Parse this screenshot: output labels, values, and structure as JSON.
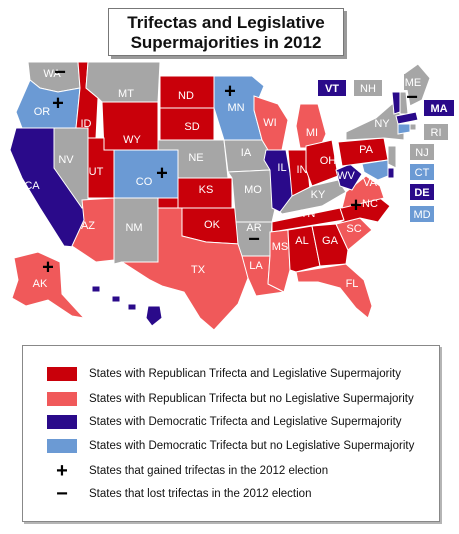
{
  "title": {
    "line1": "Trifectas and Legislative",
    "line2": "Supermajorities in 2012"
  },
  "colors": {
    "rep_super": "#c9000a",
    "rep_trifecta": "#f0595a",
    "dem_super": "#2a0a8a",
    "dem_trifecta": "#6b9ad4",
    "none": "#a6a6a6",
    "border": "#ffffff"
  },
  "states": [
    {
      "abbr": "WA",
      "cat": "none"
    },
    {
      "abbr": "OR",
      "cat": "dem_trifecta"
    },
    {
      "abbr": "CA",
      "cat": "dem_super"
    },
    {
      "abbr": "ID",
      "cat": "rep_super"
    },
    {
      "abbr": "NV",
      "cat": "none"
    },
    {
      "abbr": "MT",
      "cat": "none"
    },
    {
      "abbr": "WY",
      "cat": "rep_super"
    },
    {
      "abbr": "UT",
      "cat": "rep_super"
    },
    {
      "abbr": "AZ",
      "cat": "rep_trifecta"
    },
    {
      "abbr": "CO",
      "cat": "dem_trifecta"
    },
    {
      "abbr": "NM",
      "cat": "none"
    },
    {
      "abbr": "ND",
      "cat": "rep_super"
    },
    {
      "abbr": "SD",
      "cat": "rep_super"
    },
    {
      "abbr": "NE",
      "cat": "none"
    },
    {
      "abbr": "KS",
      "cat": "rep_super"
    },
    {
      "abbr": "OK",
      "cat": "rep_super"
    },
    {
      "abbr": "TX",
      "cat": "rep_trifecta"
    },
    {
      "abbr": "MN",
      "cat": "dem_trifecta"
    },
    {
      "abbr": "IA",
      "cat": "none"
    },
    {
      "abbr": "MO",
      "cat": "none"
    },
    {
      "abbr": "AR",
      "cat": "none"
    },
    {
      "abbr": "LA",
      "cat": "rep_trifecta"
    },
    {
      "abbr": "WI",
      "cat": "rep_trifecta"
    },
    {
      "abbr": "IL",
      "cat": "dem_super"
    },
    {
      "abbr": "MI",
      "cat": "rep_trifecta"
    },
    {
      "abbr": "IN",
      "cat": "rep_super"
    },
    {
      "abbr": "OH",
      "cat": "rep_super"
    },
    {
      "abbr": "KY",
      "cat": "none"
    },
    {
      "abbr": "TN",
      "cat": "rep_super"
    },
    {
      "abbr": "MS",
      "cat": "rep_trifecta"
    },
    {
      "abbr": "AL",
      "cat": "rep_super"
    },
    {
      "abbr": "GA",
      "cat": "rep_super"
    },
    {
      "abbr": "FL",
      "cat": "rep_trifecta"
    },
    {
      "abbr": "SC",
      "cat": "rep_trifecta"
    },
    {
      "abbr": "NC",
      "cat": "rep_super"
    },
    {
      "abbr": "VA",
      "cat": "rep_trifecta"
    },
    {
      "abbr": "WV",
      "cat": "dem_super"
    },
    {
      "abbr": "PA",
      "cat": "rep_super"
    },
    {
      "abbr": "NY",
      "cat": "none"
    },
    {
      "abbr": "ME",
      "cat": "none"
    },
    {
      "abbr": "VT",
      "cat": "dem_super"
    },
    {
      "abbr": "NH",
      "cat": "none"
    },
    {
      "abbr": "MA",
      "cat": "dem_super"
    },
    {
      "abbr": "RI",
      "cat": "none"
    },
    {
      "abbr": "CT",
      "cat": "dem_trifecta"
    },
    {
      "abbr": "NJ",
      "cat": "none"
    },
    {
      "abbr": "DE",
      "cat": "dem_super"
    },
    {
      "abbr": "MD",
      "cat": "dem_trifecta"
    },
    {
      "abbr": "AK",
      "cat": "rep_trifecta"
    },
    {
      "abbr": "HI",
      "cat": "dem_super"
    }
  ],
  "gained": [
    "OR",
    "CO",
    "MN",
    "AK",
    "NC"
  ],
  "lost": [
    "WA",
    "AR",
    "ME"
  ],
  "legend": [
    {
      "type": "swatch",
      "cat": "rep_super",
      "text": "States with Republican Trifecta and Legislative Supermajority"
    },
    {
      "type": "swatch",
      "cat": "rep_trifecta",
      "text": "States with Republican Trifecta but no Legislative Supermajority"
    },
    {
      "type": "swatch",
      "cat": "dem_super",
      "text": "States with Democratic  Trifecta and Legislative Supermajority"
    },
    {
      "type": "swatch",
      "cat": "dem_trifecta",
      "text": "States with Democratic  Trifecta but no Legislative Supermajority"
    },
    {
      "type": "symbol",
      "symbol": "+",
      "text": "States that gained trifectas in the 2012 election"
    },
    {
      "type": "symbol",
      "symbol": "−",
      "text": "States that lost trifectas in the 2012 election"
    }
  ]
}
